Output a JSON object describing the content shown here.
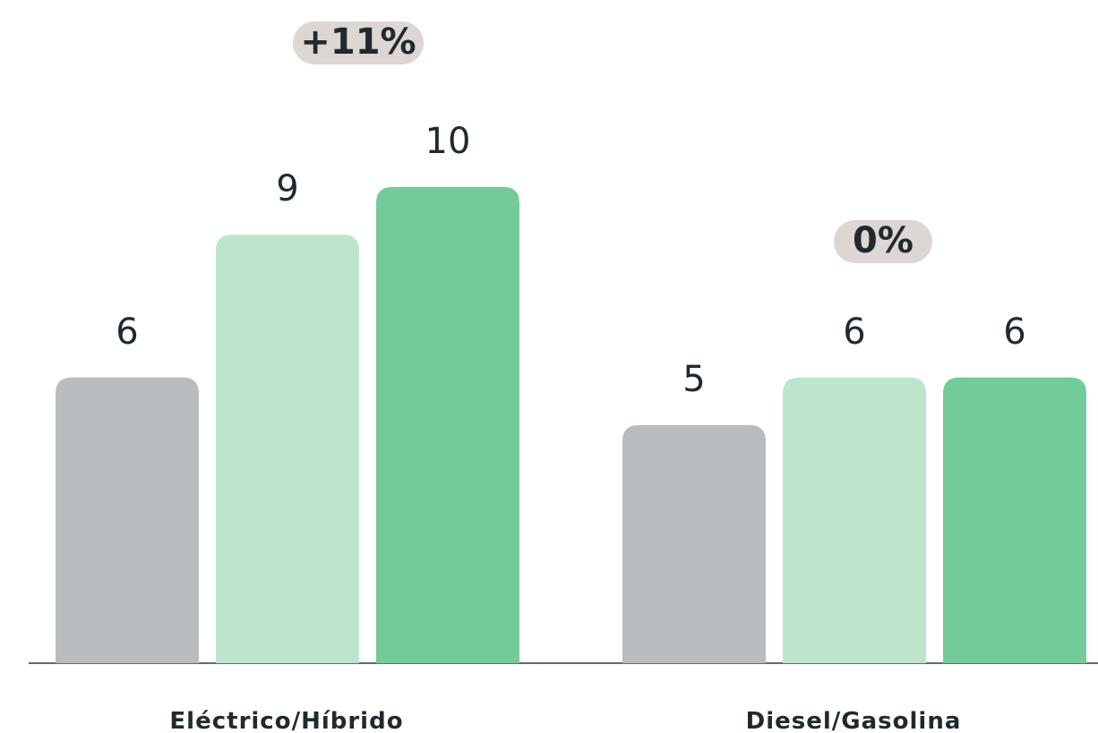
{
  "chart_data": {
    "type": "bar",
    "categories": [
      "Eléctrico/Híbrido",
      "Diesel/Gasolina"
    ],
    "series": [
      {
        "values": [
          6,
          5
        ],
        "color": "#b8bcbf"
      },
      {
        "values": [
          9,
          6
        ],
        "color": "#bde5cd"
      },
      {
        "values": [
          10,
          6
        ],
        "color": "#73cb9a"
      }
    ],
    "badges": [
      "+11%",
      "0%"
    ],
    "ylim": [
      0,
      10
    ],
    "title": "",
    "xlabel": "",
    "ylabel": "",
    "grid": false
  }
}
